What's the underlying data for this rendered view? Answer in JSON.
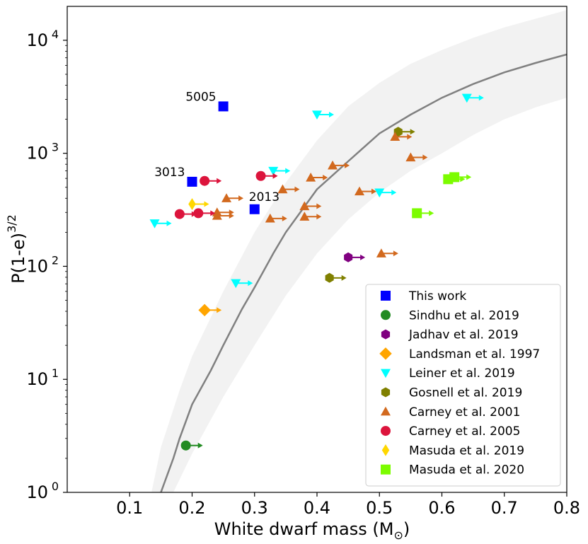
{
  "chart_data": {
    "type": "scatter",
    "xlabel": "White dwarf mass (M",
    "xlabel_sub": "⊙",
    "xlabel_close": ")",
    "ylabel": "P(1-e)",
    "ylabel_sup": "3/2",
    "xlim": [
      0.0,
      0.8
    ],
    "ylim_log10": [
      0,
      4.3
    ],
    "x_ticks": [
      {
        "value": 0.1,
        "label": "0.1"
      },
      {
        "value": 0.2,
        "label": "0.2"
      },
      {
        "value": 0.3,
        "label": "0.3"
      },
      {
        "value": 0.4,
        "label": "0.4"
      },
      {
        "value": 0.5,
        "label": "0.5"
      },
      {
        "value": 0.6,
        "label": "0.6"
      },
      {
        "value": 0.7,
        "label": "0.7"
      },
      {
        "value": 0.8,
        "label": "0.8"
      }
    ],
    "y_ticks": [
      {
        "exp": 0,
        "base": "10",
        "sup": "0"
      },
      {
        "exp": 1,
        "base": "10",
        "sup": "1"
      },
      {
        "exp": 2,
        "base": "10",
        "sup": "2"
      },
      {
        "exp": 3,
        "base": "10",
        "sup": "3"
      },
      {
        "exp": 4,
        "base": "10",
        "sup": "4"
      }
    ],
    "model_curve": {
      "color": "#808080",
      "band_color": "#f2f2f2",
      "points": [
        [
          0.15,
          1.0
        ],
        [
          0.17,
          2.0
        ],
        [
          0.18,
          3.0
        ],
        [
          0.2,
          6.0
        ],
        [
          0.23,
          12.0
        ],
        [
          0.25,
          20.0
        ],
        [
          0.28,
          42.0
        ],
        [
          0.3,
          65.0
        ],
        [
          0.33,
          130.0
        ],
        [
          0.35,
          200.0
        ],
        [
          0.4,
          480.0
        ],
        [
          0.45,
          850.0
        ],
        [
          0.5,
          1500.0
        ],
        [
          0.55,
          2200.0
        ],
        [
          0.6,
          3100.0
        ],
        [
          0.65,
          4100.0
        ],
        [
          0.7,
          5200.0
        ],
        [
          0.75,
          6300.0
        ],
        [
          0.8,
          7500.0
        ]
      ],
      "band_upper": [
        [
          0.135,
          1.0
        ],
        [
          0.15,
          2.5
        ],
        [
          0.18,
          8.0
        ],
        [
          0.2,
          16.0
        ],
        [
          0.25,
          60.0
        ],
        [
          0.3,
          200.0
        ],
        [
          0.35,
          550.0
        ],
        [
          0.4,
          1300.0
        ],
        [
          0.45,
          2600.0
        ],
        [
          0.5,
          4200.0
        ],
        [
          0.55,
          6200.0
        ],
        [
          0.6,
          8200.0
        ],
        [
          0.65,
          10500.0
        ],
        [
          0.7,
          13000.0
        ],
        [
          0.75,
          15500.0
        ],
        [
          0.8,
          18500.0
        ]
      ],
      "band_lower": [
        [
          0.17,
          1.0
        ],
        [
          0.2,
          2.2
        ],
        [
          0.25,
          7.0
        ],
        [
          0.3,
          20.0
        ],
        [
          0.35,
          55.0
        ],
        [
          0.4,
          130.0
        ],
        [
          0.45,
          260.0
        ],
        [
          0.5,
          450.0
        ],
        [
          0.55,
          700.0
        ],
        [
          0.6,
          1000.0
        ],
        [
          0.65,
          1450.0
        ],
        [
          0.7,
          2000.0
        ],
        [
          0.75,
          2550.0
        ],
        [
          0.8,
          3100.0
        ]
      ]
    },
    "series": [
      {
        "name": "This work",
        "marker": "square",
        "color": "#0000ff",
        "arrow": false,
        "points": [
          [
            0.25,
            2600
          ],
          [
            0.2,
            560
          ],
          [
            0.3,
            320
          ]
        ],
        "labels": [
          "5005",
          "3013",
          "2013"
        ]
      },
      {
        "name": "Sindhu et al. 2019",
        "marker": "circle",
        "color": "#228b22",
        "arrow": true,
        "points": [
          [
            0.19,
            2.6
          ]
        ]
      },
      {
        "name": "Jadhav et al. 2019",
        "marker": "hexagon",
        "color": "#800080",
        "arrow": true,
        "points": [
          [
            0.45,
            120
          ]
        ]
      },
      {
        "name": "Landsman et al. 1997",
        "marker": "diamond",
        "color": "#ffa500",
        "arrow": true,
        "points": [
          [
            0.22,
            41
          ]
        ]
      },
      {
        "name": "Leiner et al. 2019",
        "marker": "triangle_down",
        "color": "#00ffff",
        "arrow": true,
        "points": [
          [
            0.14,
            240
          ],
          [
            0.27,
            71
          ],
          [
            0.33,
            700
          ],
          [
            0.4,
            2200
          ],
          [
            0.5,
            450
          ],
          [
            0.64,
            3100
          ]
        ]
      },
      {
        "name": "Gosnell et al. 2019",
        "marker": "hexagon",
        "color": "#808000",
        "arrow": true,
        "points": [
          [
            0.42,
            79
          ],
          [
            0.53,
            1550
          ]
        ]
      },
      {
        "name": "Carney et al. 2001",
        "marker": "triangle_up",
        "color": "#d2691e",
        "arrow": true,
        "points": [
          [
            0.24,
            280
          ],
          [
            0.24,
            300
          ],
          [
            0.255,
            400
          ],
          [
            0.325,
            265
          ],
          [
            0.345,
            480
          ],
          [
            0.38,
            340
          ],
          [
            0.38,
            275
          ],
          [
            0.39,
            610
          ],
          [
            0.425,
            780
          ],
          [
            0.468,
            460
          ],
          [
            0.503,
            130
          ],
          [
            0.525,
            1400
          ],
          [
            0.55,
            920
          ]
        ]
      },
      {
        "name": "Carney et al. 2005",
        "marker": "circle",
        "color": "#dc143c",
        "arrow": true,
        "points": [
          [
            0.18,
            290
          ],
          [
            0.21,
            295
          ],
          [
            0.22,
            570
          ],
          [
            0.31,
            630
          ]
        ]
      },
      {
        "name": "Masuda et al. 2019",
        "marker": "thin_diamond",
        "color": "#ffd700",
        "arrow": true,
        "points": [
          [
            0.2,
            355
          ]
        ]
      },
      {
        "name": "Masuda et al. 2020",
        "marker": "square",
        "color": "#7cfc00",
        "arrow": true,
        "points": [
          [
            0.56,
            295
          ],
          [
            0.61,
            590
          ],
          [
            0.62,
            615
          ]
        ]
      }
    ]
  }
}
